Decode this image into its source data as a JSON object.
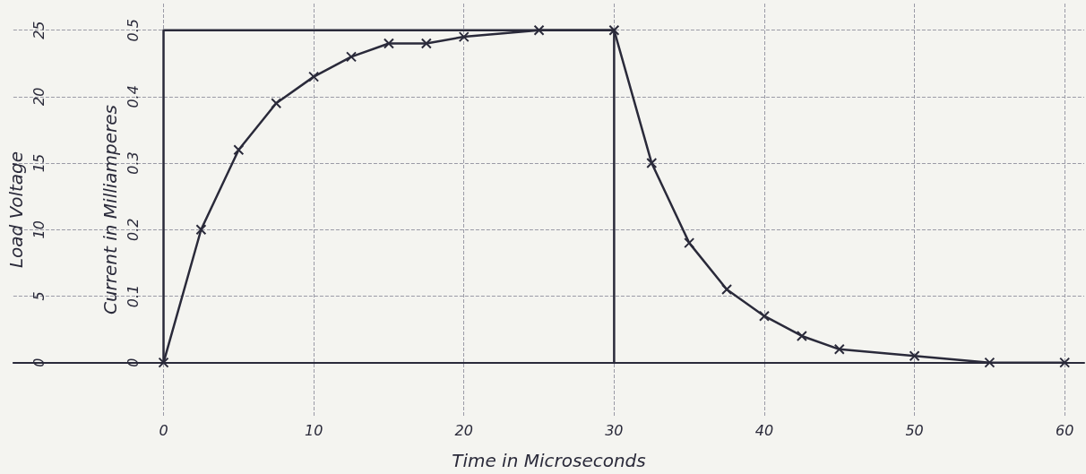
{
  "chart_data": {
    "type": "line",
    "xlabel": "Time in Microseconds",
    "ylabel": "Current in Milliamperes",
    "y2label": "Load Voltage",
    "xlim": [
      -10,
      61.3
    ],
    "xticks": [
      0,
      10,
      20,
      30,
      40,
      50,
      60
    ],
    "ylim": [
      -0.08,
      0.54
    ],
    "yticks": [
      0,
      0.1,
      0.2,
      0.3,
      0.4,
      0.5
    ],
    "y2lim": [
      -4,
      27
    ],
    "y2ticks": [
      0,
      5,
      10,
      15,
      20,
      25
    ],
    "grid": true,
    "series": [
      {
        "color": "#2a2a3a",
        "x": [
          0,
          0,
          30,
          30
        ],
        "values": [
          0,
          0.5,
          0.5,
          0
        ]
      },
      {
        "color": "#2a2a3a",
        "marker": "cross",
        "x": [
          0,
          2.5,
          5,
          7.5,
          10,
          12.5,
          15,
          17.5,
          20,
          25,
          30,
          32.5,
          35,
          37.5,
          40,
          42.5,
          45,
          50,
          55,
          60
        ],
        "values": [
          0,
          0.2,
          0.32,
          0.39,
          0.43,
          0.46,
          0.48,
          0.48,
          0.49,
          0.5,
          0.5,
          0.3,
          0.18,
          0.11,
          0.07,
          0.04,
          0.02,
          0.01,
          0,
          0
        ]
      }
    ]
  }
}
